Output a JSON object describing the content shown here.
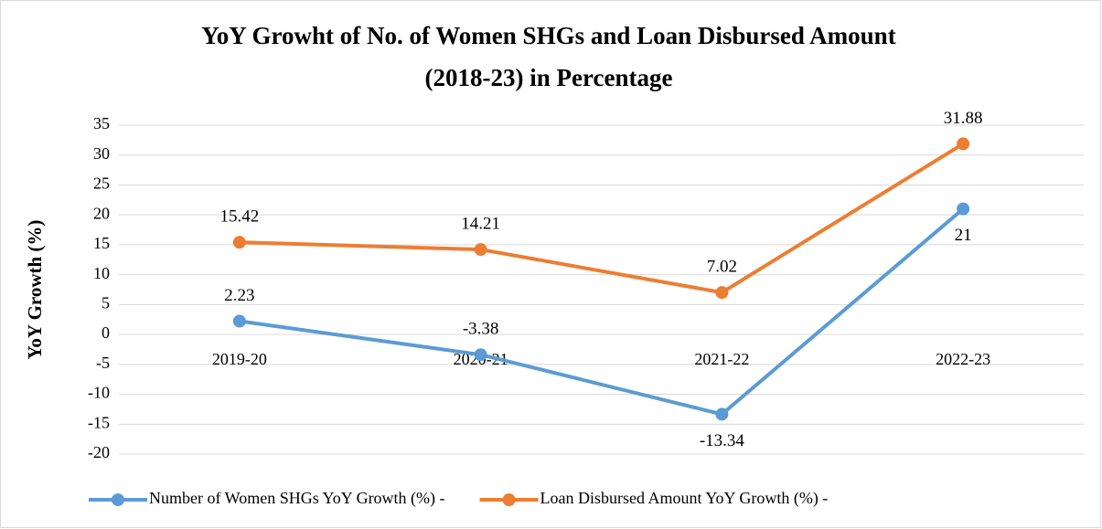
{
  "chart_data": {
    "type": "line",
    "title": [
      "YoY Growht of No. of Women SHGs and Loan Disbursed Amount",
      "(2018-23) in Percentage"
    ],
    "y_label": "YoY Growth (%)",
    "categories": [
      "2019-20",
      "2020-21",
      "2021-22",
      "2022-23"
    ],
    "series": [
      {
        "name": "Number of Women SHGs YoY Growth (%) -",
        "color": "#5b9bd5",
        "values": [
          2.23,
          -3.38,
          -13.34,
          21
        ]
      },
      {
        "name": "Loan Disbursed Amount YoY Growth (%) -",
        "color": "#ed7d31",
        "values": [
          15.42,
          14.21,
          7.02,
          31.88
        ]
      }
    ],
    "ylim": [
      -20,
      35
    ],
    "yticks": [
      -20,
      -15,
      -10,
      -5,
      0,
      5,
      10,
      15,
      20,
      25,
      30,
      35
    ],
    "grid": true,
    "legend": "bottom"
  }
}
